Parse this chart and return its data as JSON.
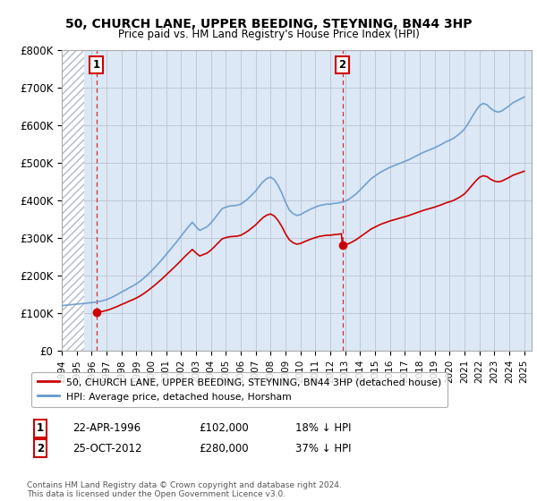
{
  "title": "50, CHURCH LANE, UPPER BEEDING, STEYNING, BN44 3HP",
  "subtitle": "Price paid vs. HM Land Registry's House Price Index (HPI)",
  "ylim": [
    0,
    800000
  ],
  "yticks": [
    0,
    100000,
    200000,
    300000,
    400000,
    500000,
    600000,
    700000,
    800000
  ],
  "ytick_labels": [
    "£0",
    "£100K",
    "£200K",
    "£300K",
    "£400K",
    "£500K",
    "£600K",
    "£700K",
    "£800K"
  ],
  "hpi_color": "#6699cc",
  "price_color": "#cc0000",
  "marker_color": "#cc0000",
  "bg_color": "#dce8f5",
  "hatch_color": "#b0b8cc",
  "grid_color": "#c0c8d8",
  "legend_label_price": "50, CHURCH LANE, UPPER BEEDING, STEYNING, BN44 3HP (detached house)",
  "legend_label_hpi": "HPI: Average price, detached house, Horsham",
  "annotation1_label": "1",
  "annotation1_date": "22-APR-1996",
  "annotation1_price": "£102,000",
  "annotation1_note": "18% ↓ HPI",
  "annotation2_label": "2",
  "annotation2_date": "25-OCT-2012",
  "annotation2_price": "£280,000",
  "annotation2_note": "37% ↓ HPI",
  "footer": "Contains HM Land Registry data © Crown copyright and database right 2024.\nThis data is licensed under the Open Government Licence v3.0.",
  "sale1_x": 1996.31,
  "sale1_y": 102000,
  "sale2_x": 2012.81,
  "sale2_y": 280000,
  "xmin": 1994,
  "xmax": 2025.5,
  "hatch_xmin": 1994,
  "hatch_xmax": 1995.5,
  "hpi_years": [
    1994,
    1994.25,
    1994.5,
    1994.75,
    1995,
    1995.25,
    1995.5,
    1995.75,
    1996,
    1996.25,
    1996.5,
    1996.75,
    1997,
    1997.25,
    1997.5,
    1997.75,
    1998,
    1998.25,
    1998.5,
    1998.75,
    1999,
    1999.25,
    1999.5,
    1999.75,
    2000,
    2000.25,
    2000.5,
    2000.75,
    2001,
    2001.25,
    2001.5,
    2001.75,
    2002,
    2002.25,
    2002.5,
    2002.75,
    2003,
    2003.25,
    2003.5,
    2003.75,
    2004,
    2004.25,
    2004.5,
    2004.75,
    2005,
    2005.25,
    2005.5,
    2005.75,
    2006,
    2006.25,
    2006.5,
    2006.75,
    2007,
    2007.25,
    2007.5,
    2007.75,
    2008,
    2008.25,
    2008.5,
    2008.75,
    2009,
    2009.25,
    2009.5,
    2009.75,
    2010,
    2010.25,
    2010.5,
    2010.75,
    2011,
    2011.25,
    2011.5,
    2011.75,
    2012,
    2012.25,
    2012.5,
    2012.75,
    2013,
    2013.25,
    2013.5,
    2013.75,
    2014,
    2014.25,
    2014.5,
    2014.75,
    2015,
    2015.25,
    2015.5,
    2015.75,
    2016,
    2016.25,
    2016.5,
    2016.75,
    2017,
    2017.25,
    2017.5,
    2017.75,
    2018,
    2018.25,
    2018.5,
    2018.75,
    2019,
    2019.25,
    2019.5,
    2019.75,
    2020,
    2020.25,
    2020.5,
    2020.75,
    2021,
    2021.25,
    2021.5,
    2021.75,
    2022,
    2022.25,
    2022.5,
    2022.75,
    2023,
    2023.25,
    2023.5,
    2023.75,
    2024,
    2024.25,
    2024.5,
    2024.75,
    2025
  ],
  "hpi_values": [
    120000,
    121000,
    122000,
    123000,
    124000,
    125000,
    126000,
    127000,
    128000,
    129000,
    131000,
    133000,
    136000,
    140000,
    145000,
    150000,
    156000,
    161000,
    167000,
    172000,
    178000,
    185000,
    193000,
    202000,
    212000,
    222000,
    233000,
    244000,
    256000,
    268000,
    280000,
    292000,
    305000,
    318000,
    330000,
    342000,
    330000,
    320000,
    325000,
    330000,
    340000,
    352000,
    365000,
    378000,
    382000,
    385000,
    386000,
    387000,
    390000,
    397000,
    405000,
    415000,
    425000,
    438000,
    450000,
    458000,
    462000,
    455000,
    440000,
    420000,
    395000,
    375000,
    365000,
    360000,
    362000,
    368000,
    373000,
    378000,
    382000,
    386000,
    388000,
    390000,
    390000,
    392000,
    393000,
    395000,
    398000,
    403000,
    410000,
    418000,
    428000,
    438000,
    448000,
    458000,
    465000,
    472000,
    478000,
    483000,
    488000,
    492000,
    496000,
    500000,
    504000,
    508000,
    513000,
    518000,
    523000,
    528000,
    532000,
    536000,
    540000,
    545000,
    550000,
    556000,
    560000,
    565000,
    572000,
    580000,
    590000,
    605000,
    622000,
    638000,
    652000,
    658000,
    655000,
    645000,
    638000,
    635000,
    638000,
    645000,
    652000,
    660000,
    665000,
    670000,
    675000
  ]
}
